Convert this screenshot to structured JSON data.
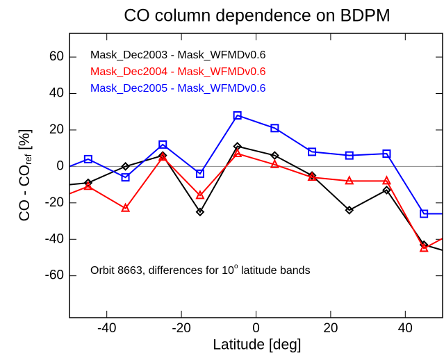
{
  "chart_data": {
    "type": "line",
    "title": "CO column dependence on BDPM",
    "xlabel": "Latitude [deg]",
    "ylabel": "CO - CO",
    "ylabel_sub": "ref",
    "ylabel_unit": " [%]",
    "annotation": "Orbit 8663, differences for 10",
    "annotation_sup": "o",
    "annotation_end": " latitude bands",
    "x": [
      -55,
      -45,
      -35,
      -25,
      -15,
      -5,
      5,
      15,
      25,
      35,
      45,
      55
    ],
    "series": [
      {
        "name": "Mask_Dec2003 - Mask_WFMDv0.6",
        "color": "#000000",
        "marker": "diamond",
        "values": [
          -11,
          -9,
          0,
          6,
          -25,
          11,
          6,
          -5,
          -24,
          -13,
          -43,
          -49
        ]
      },
      {
        "name": "Mask_Dec2004 - Mask_WFMDv0.6",
        "color": "#ff0000",
        "marker": "triangle",
        "values": [
          -19,
          -11,
          -23,
          5,
          -16,
          7,
          1,
          -6,
          -8,
          -8,
          -45,
          -34
        ]
      },
      {
        "name": "Mask_Dec2005 - Mask_WFMDv0.6",
        "color": "#0000ff",
        "marker": "square",
        "values": [
          -4,
          4,
          -6,
          12,
          -4,
          28,
          21,
          8,
          6,
          7,
          -26,
          -26
        ]
      }
    ],
    "xlim": [
      -50,
      50
    ],
    "xticks": [
      -40,
      -20,
      0,
      20,
      40
    ],
    "ylim": [
      -83,
      73
    ],
    "yticks": [
      -60,
      -40,
      -20,
      0,
      20,
      40,
      60
    ],
    "reference_line": 0,
    "legend": "upper left"
  }
}
